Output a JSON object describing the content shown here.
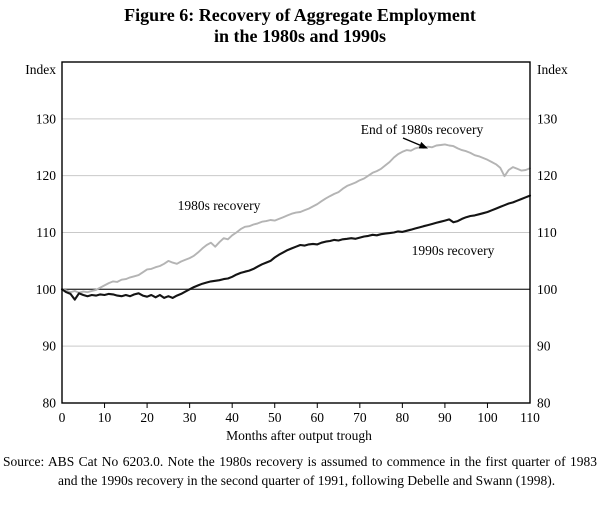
{
  "title": {
    "line1": "Figure 6: Recovery of Aggregate Employment",
    "line2": "in the 1980s and 1990s"
  },
  "axes": {
    "y_left_label": "Index",
    "y_right_label": "Index",
    "x_label": "Months after output trough",
    "y_ticks": [
      80,
      90,
      100,
      110,
      120,
      130
    ],
    "x_ticks": [
      0,
      10,
      20,
      30,
      40,
      50,
      60,
      70,
      80,
      90,
      100,
      110
    ],
    "baseline_value": 100
  },
  "annotations": {
    "label_1980s": "1980s recovery",
    "label_1990s": "1990s recovery",
    "end_label": "End of 1980s recovery"
  },
  "source_note": {
    "prefix": "Source:",
    "text": "ABS Cat No 6203.0. Note the 1980s recovery is assumed to commence in the first quarter of 1983 and the 1990s recovery in the second quarter of 1991, following Debelle and Swann (1998)."
  },
  "colors": {
    "series_1980s": "#b4b4b4",
    "series_1990s": "#141414",
    "gridline": "#c9c9c9",
    "baseline": "#3d3d3d",
    "axis": "#000000"
  },
  "chart_data": {
    "type": "line",
    "title": "Figure 6: Recovery of Aggregate Employment in the 1980s and 1990s",
    "xlabel": "Months after output trough",
    "ylabel": "Index",
    "xlim": [
      0,
      110
    ],
    "ylim": [
      80,
      140
    ],
    "grid": "horizontal",
    "legend": "inline-labels",
    "x_start": 0,
    "x_step": 1,
    "series": [
      {
        "name": "1980s recovery",
        "color": "#b4b4b4",
        "values": [
          100.0,
          99.8,
          99.5,
          99.7,
          99.4,
          99.6,
          99.5,
          99.7,
          99.9,
          100.3,
          100.7,
          101.1,
          101.4,
          101.3,
          101.7,
          101.8,
          102.1,
          102.3,
          102.5,
          103.0,
          103.5,
          103.6,
          103.9,
          104.1,
          104.5,
          105.0,
          104.7,
          104.5,
          104.9,
          105.2,
          105.5,
          105.9,
          106.5,
          107.2,
          107.8,
          108.2,
          107.5,
          108.3,
          109.0,
          108.8,
          109.5,
          110.0,
          110.6,
          111.0,
          111.1,
          111.4,
          111.6,
          111.9,
          112.0,
          112.2,
          112.1,
          112.4,
          112.7,
          113.0,
          113.3,
          113.5,
          113.6,
          113.9,
          114.2,
          114.6,
          115.0,
          115.5,
          116.0,
          116.4,
          116.8,
          117.1,
          117.7,
          118.2,
          118.5,
          118.8,
          119.2,
          119.5,
          120.0,
          120.5,
          120.8,
          121.2,
          121.8,
          122.4,
          123.2,
          123.8,
          124.2,
          124.5,
          124.4,
          124.8,
          125.0,
          124.9,
          125.1,
          125.0,
          125.3,
          125.4,
          125.5,
          125.3,
          125.2,
          124.8,
          124.5,
          124.3,
          124.0,
          123.6,
          123.4,
          123.1,
          122.8,
          122.4,
          122.0,
          121.4,
          119.9,
          121.0,
          121.5,
          121.2,
          120.9,
          121.0,
          121.3
        ]
      },
      {
        "name": "1990s recovery",
        "color": "#141414",
        "values": [
          100.0,
          99.5,
          99.2,
          98.2,
          99.3,
          99.0,
          98.8,
          99.0,
          98.9,
          99.1,
          99.0,
          99.2,
          99.1,
          98.9,
          98.8,
          99.0,
          98.8,
          99.1,
          99.3,
          98.9,
          98.7,
          99.0,
          98.6,
          99.0,
          98.5,
          98.8,
          98.5,
          98.9,
          99.2,
          99.6,
          100.0,
          100.4,
          100.7,
          101.0,
          101.2,
          101.4,
          101.5,
          101.6,
          101.8,
          101.9,
          102.2,
          102.6,
          102.9,
          103.1,
          103.3,
          103.6,
          104.0,
          104.4,
          104.7,
          105.0,
          105.6,
          106.1,
          106.5,
          106.9,
          107.2,
          107.5,
          107.8,
          107.7,
          107.9,
          108.0,
          107.9,
          108.2,
          108.4,
          108.5,
          108.7,
          108.6,
          108.8,
          108.9,
          109.0,
          108.9,
          109.1,
          109.3,
          109.4,
          109.6,
          109.5,
          109.7,
          109.8,
          109.9,
          110.0,
          110.2,
          110.1,
          110.3,
          110.5,
          110.7,
          110.9,
          111.1,
          111.3,
          111.5,
          111.7,
          111.9,
          112.1,
          112.3,
          111.8,
          112.0,
          112.4,
          112.7,
          112.9,
          113.0,
          113.2,
          113.4,
          113.6,
          113.9,
          114.2,
          114.5,
          114.8,
          115.1,
          115.3,
          115.6,
          115.9,
          116.2,
          116.5
        ]
      }
    ]
  }
}
